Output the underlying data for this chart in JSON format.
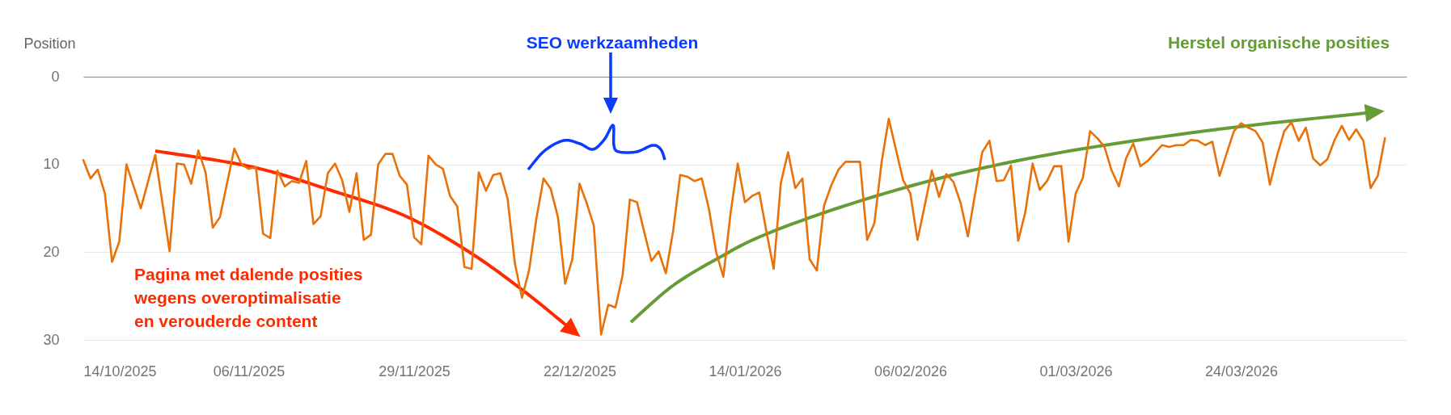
{
  "chart_data": {
    "type": "line",
    "ylabel": "Position",
    "annotations": [
      "SEO werkzaamheden",
      "Herstel organische posities",
      "Pagina met dalende posities\nwegens overoptimalisatie\nen verouderde content"
    ],
    "x": [
      "2025-10-14",
      "2025-10-15",
      "2025-10-16",
      "2025-10-17",
      "2025-10-18",
      "2025-10-19",
      "2025-10-20",
      "2025-10-22",
      "2025-10-24",
      "2025-10-26",
      "2025-10-27",
      "2025-10-28",
      "2025-10-29",
      "2025-10-30",
      "2025-10-31",
      "2025-11-01",
      "2025-11-02",
      "2025-11-04",
      "2025-11-05",
      "2025-11-06",
      "2025-11-07",
      "2025-11-08",
      "2025-11-09",
      "2025-11-10",
      "2025-11-11",
      "2025-11-12",
      "2025-11-13",
      "2025-11-14",
      "2025-11-15",
      "2025-11-16",
      "2025-11-17",
      "2025-11-18",
      "2025-11-19",
      "2025-11-20",
      "2025-11-21",
      "2025-11-22",
      "2025-11-23",
      "2025-11-24",
      "2025-11-25",
      "2025-11-26",
      "2025-11-27",
      "2025-11-28",
      "2025-11-29",
      "2025-11-30",
      "2025-12-01",
      "2025-12-02",
      "2025-12-03",
      "2025-12-04",
      "2025-12-05",
      "2025-12-06",
      "2025-12-07",
      "2025-12-08",
      "2025-12-09",
      "2025-12-10",
      "2025-12-11",
      "2025-12-12",
      "2025-12-13",
      "2025-12-14",
      "2025-12-15",
      "2025-12-16",
      "2025-12-17",
      "2025-12-18",
      "2025-12-19",
      "2025-12-20",
      "2025-12-21",
      "2025-12-22",
      "2025-12-23",
      "2025-12-24",
      "2025-12-25",
      "2025-12-26",
      "2025-12-27",
      "2025-12-28",
      "2025-12-29",
      "2025-12-30",
      "2025-12-31",
      "2026-01-01",
      "2026-01-02",
      "2026-01-03",
      "2026-01-04",
      "2026-01-05",
      "2026-01-06",
      "2026-01-07",
      "2026-01-08",
      "2026-01-09",
      "2026-01-10",
      "2026-01-11",
      "2026-01-12",
      "2026-01-13",
      "2026-01-14",
      "2026-01-15",
      "2026-01-16",
      "2026-01-17",
      "2026-01-18",
      "2026-01-19",
      "2026-01-20",
      "2026-01-21",
      "2026-01-22",
      "2026-01-23",
      "2026-01-24",
      "2026-01-25",
      "2026-01-26",
      "2026-01-27",
      "2026-01-28",
      "2026-01-29",
      "2026-01-30",
      "2026-01-31",
      "2026-02-01",
      "2026-02-02",
      "2026-02-03",
      "2026-02-04",
      "2026-02-05",
      "2026-02-06",
      "2026-02-07",
      "2026-02-08",
      "2026-02-09",
      "2026-02-10",
      "2026-02-11",
      "2026-02-12",
      "2026-02-13",
      "2026-02-14",
      "2026-02-15",
      "2026-02-16",
      "2026-02-17",
      "2026-02-18",
      "2026-02-19",
      "2026-02-20",
      "2026-02-21",
      "2026-02-22",
      "2026-02-23",
      "2026-02-24",
      "2026-02-25",
      "2026-02-26",
      "2026-02-27",
      "2026-02-28",
      "2026-03-01",
      "2026-03-02",
      "2026-03-03",
      "2026-03-04",
      "2026-03-05",
      "2026-03-06",
      "2026-03-07",
      "2026-03-08",
      "2026-03-09",
      "2026-03-10",
      "2026-03-11",
      "2026-03-12",
      "2026-03-13",
      "2026-03-14",
      "2026-03-15",
      "2026-03-16",
      "2026-03-17",
      "2026-03-18",
      "2026-03-19",
      "2026-03-20",
      "2026-03-21",
      "2026-03-22",
      "2026-03-23",
      "2026-03-24",
      "2026-03-25",
      "2026-03-26",
      "2026-03-27",
      "2026-03-28",
      "2026-03-29",
      "2026-03-30",
      "2026-03-31",
      "2026-04-01",
      "2026-04-02",
      "2026-04-03",
      "2026-04-04",
      "2026-04-05",
      "2026-04-06",
      "2026-04-07",
      "2026-04-08",
      "2026-04-09",
      "2026-04-10",
      "2026-04-11",
      "2026-04-12",
      "2026-04-13"
    ],
    "series": [
      {
        "color": "#e8710a",
        "values": [
          9.5,
          11.6,
          10.6,
          13.3,
          21.1,
          18.8,
          10.0,
          15.0,
          8.9,
          19.9,
          9.9,
          10.0,
          12.2,
          8.4,
          10.9,
          17.2,
          16.0,
          8.2,
          10.0,
          10.5,
          10.3,
          17.9,
          18.4,
          10.7,
          12.5,
          11.9,
          12.1,
          9.6,
          16.8,
          15.9,
          11.0,
          9.9,
          11.8,
          15.4,
          11.0,
          18.6,
          18.0,
          10.0,
          8.8,
          8.8,
          11.3,
          12.3,
          18.3,
          19.1,
          9.0,
          10.0,
          10.5,
          13.6,
          14.8,
          21.7,
          21.9,
          10.9,
          13.0,
          11.2,
          11.0,
          13.9,
          21.2,
          25.2,
          22.0,
          16.2,
          11.6,
          12.8,
          16.0,
          23.6,
          20.8,
          12.2,
          14.4,
          17.0,
          29.4,
          26.0,
          26.3,
          22.6,
          14.0,
          14.3,
          17.7,
          21.0,
          19.9,
          22.4,
          17.7,
          11.2,
          11.4,
          11.9,
          11.6,
          15.1,
          20.0,
          22.8,
          15.6,
          9.9,
          14.3,
          13.6,
          13.2,
          17.7,
          21.9,
          12.1,
          8.6,
          12.7,
          11.6,
          20.8,
          22.1,
          14.7,
          12.4,
          10.6,
          9.7,
          9.7,
          9.7,
          18.6,
          16.7,
          9.8,
          4.8,
          8.3,
          11.8,
          13.3,
          18.6,
          14.7,
          10.7,
          13.7,
          11.1,
          12.0,
          14.4,
          18.2,
          13.4,
          8.6,
          7.3,
          11.9,
          11.8,
          10.1,
          18.7,
          15.4,
          9.9,
          12.9,
          11.9,
          10.2,
          10.2,
          18.8,
          13.3,
          11.5,
          6.2,
          7.0,
          8.0,
          10.7,
          12.5,
          9.3,
          7.6,
          10.2,
          9.6,
          8.7,
          7.8,
          8.0,
          7.8,
          7.8,
          7.2,
          7.3,
          7.8,
          7.4,
          11.3,
          8.7,
          6.2,
          5.3,
          5.8,
          6.2,
          7.5,
          12.3,
          9.0,
          6.2,
          5.2,
          7.3,
          5.8,
          9.3,
          10.1,
          9.4,
          7.2,
          5.6,
          7.2,
          6.0,
          7.3,
          12.7,
          11.3,
          7.0
        ]
      }
    ],
    "xlim": [
      "2025-10-14",
      "2026-04-16"
    ],
    "xticks": [
      {
        "value": "2025-10-14",
        "label": "14/10/2025"
      },
      {
        "value": "2025-11-06",
        "label": "06/11/2025"
      },
      {
        "value": "2025-11-29",
        "label": "29/11/2025"
      },
      {
        "value": "2025-12-22",
        "label": "22/12/2025"
      },
      {
        "value": "2026-01-14",
        "label": "14/01/2026"
      },
      {
        "value": "2026-02-06",
        "label": "06/02/2026"
      },
      {
        "value": "2026-03-01",
        "label": "01/03/2026"
      },
      {
        "value": "2026-03-24",
        "label": "24/03/2026"
      }
    ],
    "ylim": [
      30,
      0
    ],
    "yticks": [
      0,
      10,
      20,
      30
    ],
    "grid": "y"
  }
}
